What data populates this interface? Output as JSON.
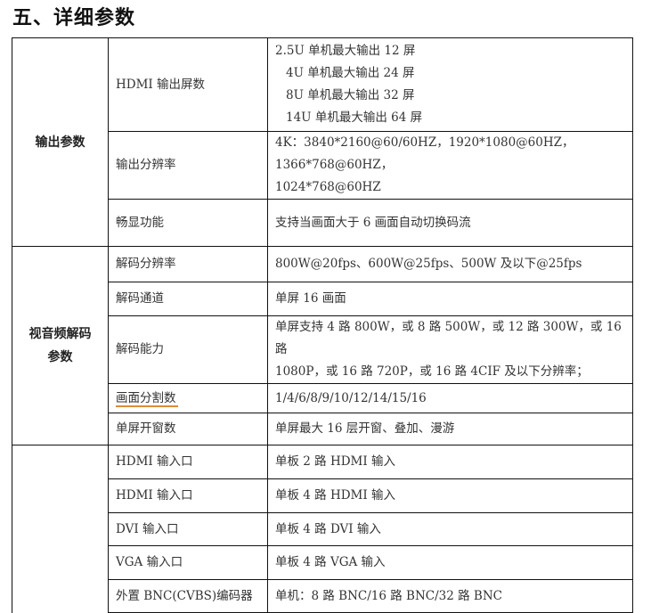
{
  "title": "五、详细参数",
  "groups": [
    {
      "label_lines": [
        "输出参数"
      ],
      "rows": [
        {
          "name": "HDMI 输出屏数",
          "value_lines": [
            "2.5U 单机最大输出 12 屏",
            "4U 单机最大输出 24 屏",
            "8U 单机最大输出 32 屏",
            "14U 单机最大输出 64 屏"
          ]
        },
        {
          "name": "输出分辨率",
          "value_lines": [
            "4K：3840*2160@60/60HZ，1920*1080@60HZ，1366*768@60HZ，",
            "1024*768@60HZ"
          ]
        },
        {
          "name": "畅显功能",
          "value_lines": [
            "支持当画面大于 6 画面自动切换码流"
          ]
        }
      ]
    },
    {
      "label_lines": [
        "视音频解码",
        "参数"
      ],
      "rows": [
        {
          "name": "解码分辨率",
          "value_lines": [
            "800W@20fps、600W@25fps、500W 及以下@25fps"
          ]
        },
        {
          "name": "解码通道",
          "value_lines": [
            "单屏 16 画面"
          ]
        },
        {
          "name": "解码能力",
          "value_lines": [
            "单屏支持 4 路 800W，或 8 路 500W，或 12 路 300W，或 16 路",
            "1080P，或 16 路 720P，或 16 路 4CIF 及以下分辨率；"
          ]
        },
        {
          "name": "画面分割数",
          "value_lines": [
            "1/4/6/8/9/10/12/14/15/16"
          ]
        },
        {
          "name": "单屏开窗数",
          "value_lines": [
            "单屏最大 16 层开窗、叠加、漫游"
          ]
        }
      ]
    },
    {
      "label_lines": [],
      "rows": [
        {
          "name": "HDMI 输入口",
          "value_lines": [
            "单板 2 路 HDMI 输入"
          ]
        },
        {
          "name": "HDMI 输入口",
          "value_lines": [
            "单板 4 路 HDMI 输入"
          ]
        },
        {
          "name": "DVI 输入口",
          "value_lines": [
            "单板 4 路 DVI 输入"
          ]
        },
        {
          "name": "VGA 输入口",
          "value_lines": [
            "单板 4 路 VGA 输入"
          ]
        },
        {
          "name": "外置 BNC(CVBS)编码器",
          "value_lines": [
            "单机：8 路 BNC/16 路 BNC/32 路 BNC"
          ]
        }
      ]
    }
  ]
}
